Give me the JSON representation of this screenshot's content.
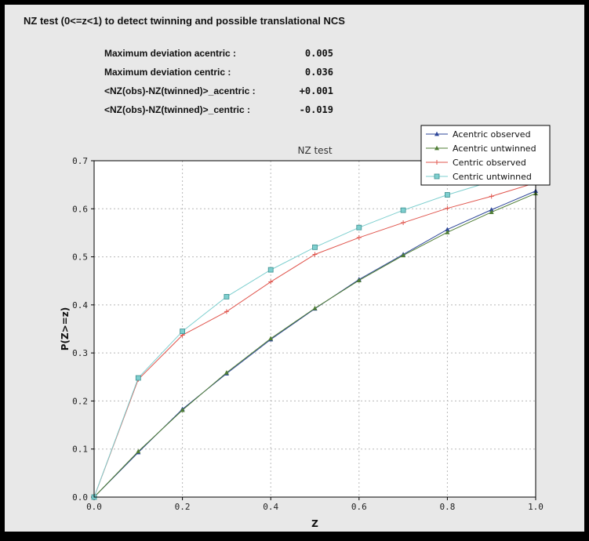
{
  "page": {
    "title": "NZ test (0<=z<1) to detect twinning and possible translational NCS"
  },
  "stats": [
    {
      "label": "Maximum deviation acentric :",
      "value": "0.005"
    },
    {
      "label": "Maximum deviation centric :",
      "value": "0.036"
    },
    {
      "label": "<NZ(obs)-NZ(twinned)>_acentric :",
      "value": "+0.001"
    },
    {
      "label": "<NZ(obs)-NZ(twinned)>_centric :",
      "value": "-0.019"
    }
  ],
  "chart_data": {
    "type": "line",
    "title": "NZ test",
    "xlabel": "Z",
    "ylabel": "P(Z>=z)",
    "xlim": [
      0.0,
      1.0
    ],
    "ylim": [
      0.0,
      0.7
    ],
    "xticks": [
      0.0,
      0.2,
      0.4,
      0.6,
      0.8,
      1.0
    ],
    "yticks": [
      0.0,
      0.1,
      0.2,
      0.3,
      0.4,
      0.5,
      0.6,
      0.7
    ],
    "grid": true,
    "grid_color": "#b8b8b8",
    "plot_bg": "#ffffff",
    "panel_bg": "#e8e8e8",
    "legend_position": "top-right",
    "x": [
      0.0,
      0.1,
      0.2,
      0.3,
      0.4,
      0.5,
      0.6,
      0.7,
      0.8,
      0.9,
      1.0
    ],
    "series": [
      {
        "name": "Acentric observed",
        "color": "#2d4699",
        "marker": "triangle-up",
        "values": [
          0.0,
          0.093,
          0.183,
          0.257,
          0.328,
          0.392,
          0.453,
          0.505,
          0.557,
          0.598,
          0.637
        ]
      },
      {
        "name": "Acentric untwinned",
        "color": "#4f7d35",
        "marker": "triangle-up",
        "values": [
          0.0,
          0.095,
          0.181,
          0.259,
          0.33,
          0.393,
          0.451,
          0.503,
          0.551,
          0.593,
          0.632
        ]
      },
      {
        "name": "Centric observed",
        "color": "#e0554d",
        "marker": "plus",
        "values": [
          0.0,
          0.245,
          0.337,
          0.386,
          0.448,
          0.505,
          0.54,
          0.571,
          0.601,
          0.626,
          0.654
        ]
      },
      {
        "name": "Centric untwinned",
        "color": "#7ecfcf",
        "marker": "square",
        "marker_edge": "#3c8f8f",
        "values": [
          0.0,
          0.248,
          0.345,
          0.417,
          0.473,
          0.52,
          0.561,
          0.597,
          0.629,
          0.657,
          0.683
        ]
      }
    ]
  }
}
